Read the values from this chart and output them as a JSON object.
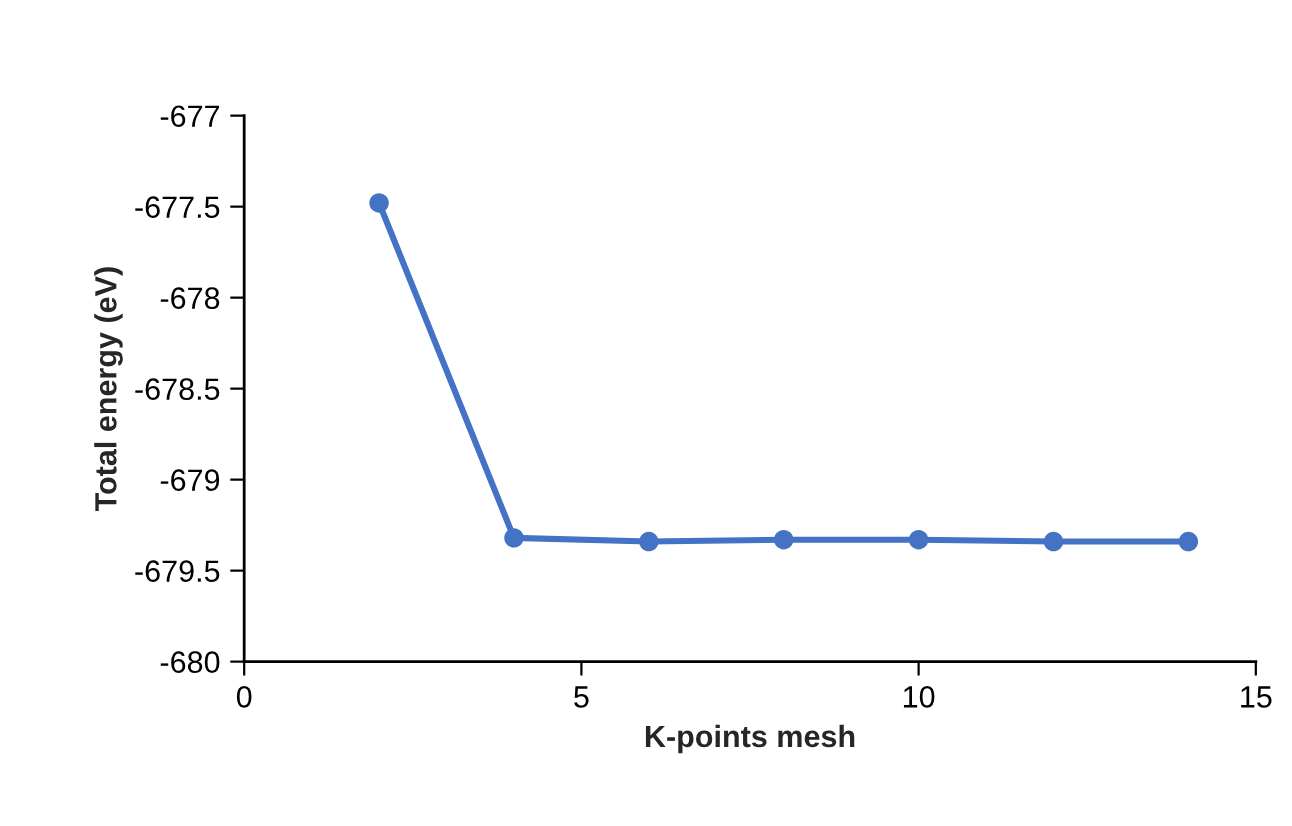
{
  "chart_data": {
    "type": "line",
    "xlabel": "K-points mesh",
    "ylabel": "Total energy (eV)",
    "x": [
      2,
      4,
      6,
      8,
      10,
      12,
      14
    ],
    "series": [
      {
        "color": "#4472c4",
        "values": [
          -677.48,
          -679.32,
          -679.34,
          -679.33,
          -679.33,
          -679.34,
          -679.34
        ]
      }
    ],
    "xlim": [
      0,
      15
    ],
    "xticks": [
      0,
      5,
      10,
      15
    ],
    "ylim": [
      -680,
      -677
    ],
    "yticks": [
      -680,
      -679.5,
      -679,
      -678.5,
      -678,
      -677.5,
      -677
    ],
    "grid": false,
    "marker": "circle",
    "line_style": "solid"
  }
}
